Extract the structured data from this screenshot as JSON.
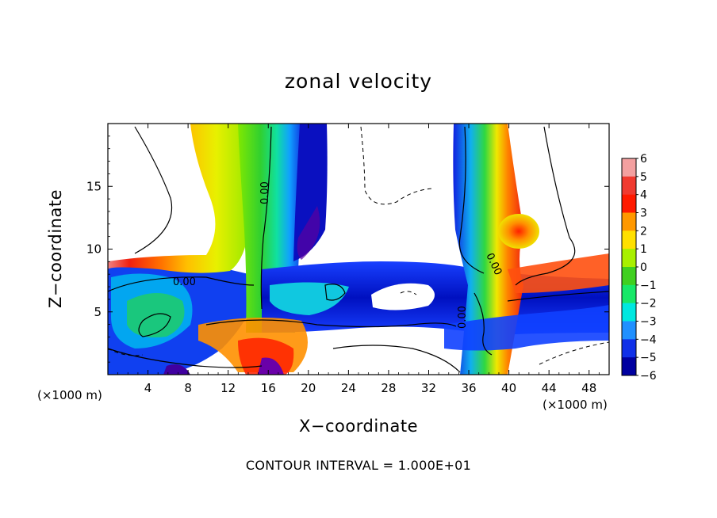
{
  "chart_data": {
    "type": "heatmap",
    "title": "zonal velocity",
    "xlabel": "X−coordinate",
    "ylabel": "Z−coordinate",
    "x_unit_label": "(×1000 m)",
    "xlim": [
      0,
      50
    ],
    "ylim": [
      0,
      20
    ],
    "x_ticks": [
      4,
      8,
      12,
      16,
      20,
      24,
      28,
      32,
      36,
      40,
      44,
      48
    ],
    "y_ticks": [
      5,
      10,
      15
    ],
    "colorbar": {
      "ticks": [
        6,
        5,
        4,
        3,
        2,
        1,
        0,
        -1,
        -2,
        -3,
        -4,
        -5,
        -6
      ],
      "labels": [
        "6",
        "5",
        "4",
        "3",
        "2",
        "1",
        "0",
        "−1",
        "−2",
        "−3",
        "−4",
        "−5",
        "−6"
      ],
      "colors": [
        "#f3a0a0",
        "#f03a30",
        "#ff1a00",
        "#ff9800",
        "#ffe000",
        "#a8f000",
        "#40d020",
        "#18e868",
        "#00e8e0",
        "#2090ff",
        "#1030e8",
        "#0000a0",
        "#6a00a8"
      ]
    },
    "contour_labels": [
      "0.00",
      "0.00",
      "0.00",
      "0.00"
    ],
    "contour_interval_text": "CONTOUR INTERVAL = 1.000E+01"
  }
}
